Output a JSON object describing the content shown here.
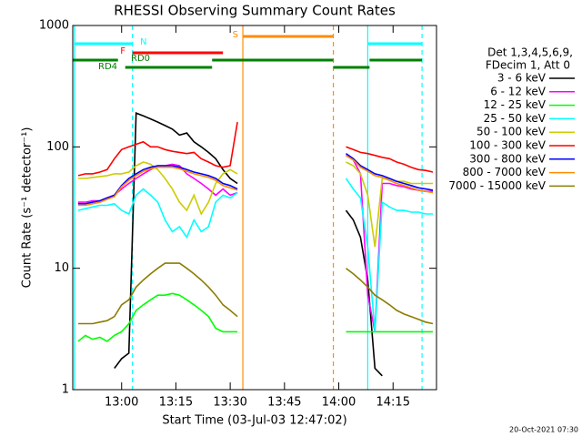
{
  "chart_data": {
    "type": "line",
    "title": "RHESSI Observing Summary Count Rates",
    "xlabel": "Start Time (03-Jul-03 12:47:02)",
    "ylabel": "Count Rate (s⁻¹ detector⁻¹)",
    "legend_header": [
      "Det 1,3,4,5,6,9,",
      "FDecim 1, Att 0"
    ],
    "timestamp": "20-Oct-2021 07:30",
    "log_y": true,
    "xlim": [
      766.5,
      867
    ],
    "ylim": [
      1,
      1000
    ],
    "yticks": [
      1,
      10,
      100,
      1000
    ],
    "xticks": [
      {
        "value": 780,
        "label": "13:00"
      },
      {
        "value": 795,
        "label": "13:15"
      },
      {
        "value": 810,
        "label": "13:30"
      },
      {
        "value": 825,
        "label": "13:45"
      },
      {
        "value": 840,
        "label": "14:00"
      },
      {
        "value": 855,
        "label": "14:15"
      }
    ],
    "x": [
      768,
      770,
      772,
      774,
      776,
      778,
      780,
      782,
      784,
      786,
      788,
      790,
      792,
      794,
      796,
      798,
      800,
      802,
      804,
      806,
      808,
      810,
      812,
      814,
      816,
      818,
      820,
      822,
      824,
      826,
      828,
      830,
      832,
      834,
      836,
      838,
      840,
      842,
      844,
      846,
      848,
      850,
      852,
      854,
      856,
      858,
      860,
      862,
      864,
      866
    ],
    "series": [
      {
        "name": "3 - 6 keV",
        "color": "#000000",
        "values": [
          null,
          null,
          null,
          null,
          null,
          1.5,
          1.8,
          2,
          190,
          180,
          170,
          160,
          150,
          140,
          125,
          130,
          110,
          100,
          90,
          80,
          65,
          55,
          50,
          null,
          null,
          null,
          null,
          null,
          null,
          null,
          null,
          null,
          null,
          null,
          null,
          null,
          null,
          30,
          25,
          18,
          8,
          1.5,
          1.3,
          null,
          null,
          null,
          null,
          null,
          null,
          null
        ]
      },
      {
        "name": "6 - 12 keV",
        "color": "#ff00ff",
        "values": [
          35,
          35,
          36,
          36,
          38,
          40,
          45,
          50,
          55,
          60,
          65,
          70,
          70,
          72,
          70,
          60,
          55,
          50,
          45,
          40,
          45,
          40,
          42,
          null,
          null,
          null,
          null,
          null,
          null,
          null,
          null,
          null,
          null,
          null,
          null,
          null,
          null,
          85,
          78,
          60,
          6,
          3,
          50,
          50,
          48,
          47,
          45,
          44,
          43,
          43
        ]
      },
      {
        "name": "12 - 25 keV",
        "color": "#00ff00",
        "values": [
          2.5,
          2.8,
          2.6,
          2.7,
          2.5,
          2.8,
          3,
          3.5,
          4.5,
          5,
          5.5,
          6,
          6,
          6.2,
          6,
          5.5,
          5,
          4.5,
          4,
          3.2,
          3,
          3,
          3,
          null,
          null,
          null,
          null,
          null,
          null,
          null,
          null,
          null,
          null,
          null,
          null,
          null,
          null,
          3,
          3,
          3,
          3,
          3,
          3,
          3,
          3,
          3,
          3,
          3,
          3,
          3
        ]
      },
      {
        "name": "25 - 50 keV",
        "color": "#00ffff",
        "values": [
          30,
          31,
          32,
          33,
          33,
          34,
          30,
          28,
          40,
          45,
          40,
          35,
          25,
          20,
          22,
          18,
          25,
          20,
          22,
          35,
          40,
          38,
          42,
          null,
          null,
          null,
          null,
          null,
          null,
          null,
          null,
          null,
          null,
          null,
          null,
          null,
          null,
          55,
          45,
          38,
          15,
          3,
          35,
          32,
          30,
          30,
          29,
          29,
          28,
          28
        ]
      },
      {
        "name": "50 - 100 keV",
        "color": "#cccc00",
        "values": [
          55,
          55,
          56,
          57,
          58,
          60,
          60,
          62,
          70,
          75,
          72,
          65,
          55,
          45,
          35,
          30,
          40,
          28,
          35,
          50,
          60,
          65,
          60,
          null,
          null,
          null,
          null,
          null,
          null,
          null,
          null,
          null,
          null,
          null,
          null,
          null,
          null,
          75,
          70,
          60,
          40,
          15,
          55,
          55,
          52,
          52,
          50,
          50,
          50,
          50
        ]
      },
      {
        "name": "100 - 300 keV",
        "color": "#ff0000",
        "values": [
          58,
          60,
          60,
          62,
          65,
          80,
          95,
          100,
          105,
          110,
          100,
          100,
          95,
          92,
          90,
          88,
          90,
          80,
          75,
          70,
          68,
          70,
          160,
          null,
          null,
          null,
          null,
          null,
          null,
          null,
          null,
          null,
          null,
          null,
          null,
          null,
          null,
          100,
          95,
          90,
          88,
          85,
          82,
          80,
          75,
          72,
          68,
          65,
          64,
          62
        ]
      },
      {
        "name": "300 - 800 keV",
        "color": "#0000ff",
        "values": [
          34,
          34,
          35,
          36,
          38,
          40,
          48,
          55,
          60,
          65,
          68,
          70,
          70,
          70,
          68,
          65,
          62,
          60,
          58,
          55,
          50,
          48,
          45,
          null,
          null,
          null,
          null,
          null,
          null,
          null,
          null,
          null,
          null,
          null,
          null,
          null,
          null,
          88,
          80,
          70,
          65,
          60,
          58,
          55,
          52,
          50,
          48,
          46,
          45,
          44
        ]
      },
      {
        "name": "800 - 7000 keV",
        "color": "#ff8c00",
        "values": [
          33,
          33,
          34,
          35,
          37,
          39,
          47,
          53,
          58,
          63,
          66,
          68,
          68,
          68,
          66,
          63,
          60,
          58,
          56,
          53,
          48,
          46,
          44,
          null,
          null,
          null,
          null,
          null,
          null,
          null,
          null,
          null,
          null,
          null,
          null,
          null,
          null,
          85,
          78,
          68,
          63,
          58,
          56,
          53,
          50,
          48,
          46,
          44,
          43,
          42
        ]
      },
      {
        "name": "7000 - 15000 keV",
        "color": "#8b7d00",
        "values": [
          3.5,
          3.5,
          3.5,
          3.6,
          3.7,
          4,
          5,
          5.5,
          7,
          8,
          9,
          10,
          11,
          11,
          11,
          10,
          9,
          8,
          7,
          6,
          5,
          4.5,
          4,
          null,
          null,
          null,
          null,
          null,
          null,
          null,
          null,
          null,
          null,
          null,
          null,
          null,
          null,
          10,
          9,
          8,
          7,
          6,
          5.5,
          5,
          4.5,
          4.2,
          4,
          3.8,
          3.6,
          3.5
        ]
      }
    ],
    "flags": [
      {
        "label": "N",
        "color": "#00ffff",
        "intervals": [
          [
            767,
            783
          ],
          [
            848,
            863
          ]
        ],
        "vlines": true
      },
      {
        "label": "F",
        "color": "#ff0000",
        "intervals": [
          [
            783,
            808
          ]
        ],
        "vlines": false
      },
      {
        "label": "S",
        "color": "#ff8c00",
        "intervals": [
          [
            813.5,
            838.5
          ]
        ],
        "vlines": true
      },
      {
        "label": "RD0",
        "color": "#008000",
        "intervals": [
          [
            766.5,
            779
          ],
          [
            805,
            838.5
          ],
          [
            848.5,
            863
          ]
        ],
        "vlines": false
      },
      {
        "label": "RD4",
        "color": "#008000",
        "intervals": [
          [
            781,
            805
          ],
          [
            838.5,
            848.5
          ]
        ],
        "vlines": false
      }
    ]
  }
}
